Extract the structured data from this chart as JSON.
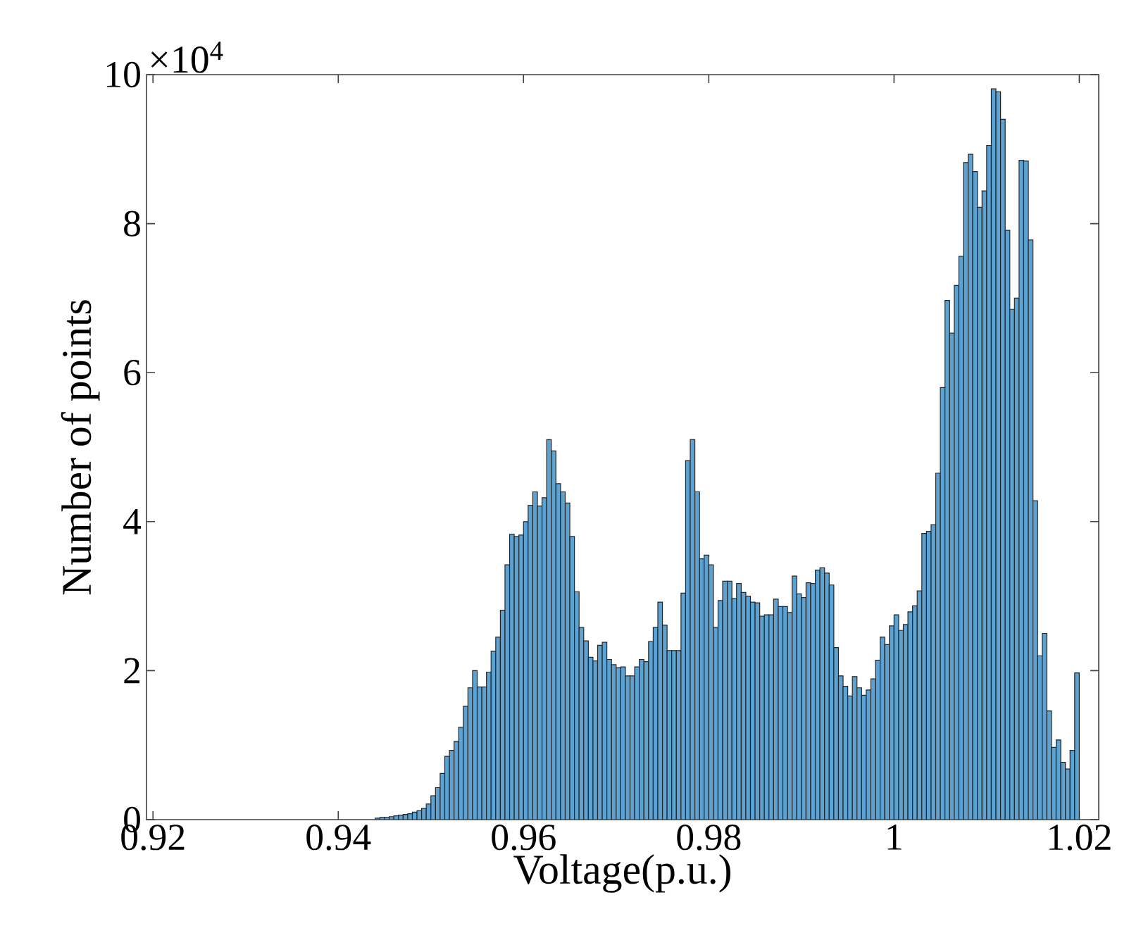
{
  "chart_data": {
    "type": "histogram",
    "xlabel": "Voltage(p.u.)",
    "ylabel": "Number of points",
    "annotations": [
      "×10$^{4}$"
    ],
    "color": "#5ca3d3",
    "bins": [
      0.944,
      0.9445,
      0.945,
      0.9455,
      0.946,
      0.9465,
      0.947,
      0.9475,
      0.948,
      0.9485,
      0.949,
      0.9495,
      0.95,
      0.9505,
      0.951,
      0.9515,
      0.952,
      0.9525,
      0.953,
      0.9535,
      0.954,
      0.9545,
      0.955,
      0.9555,
      0.956,
      0.9565,
      0.957,
      0.9575,
      0.958,
      0.9585,
      0.959,
      0.9595,
      0.96,
      0.9605,
      0.961,
      0.9615,
      0.962,
      0.9625,
      0.963,
      0.9635,
      0.964,
      0.9645,
      0.965,
      0.9655,
      0.966,
      0.9665,
      0.967,
      0.9675,
      0.968,
      0.9685,
      0.969,
      0.9695,
      0.97,
      0.9705,
      0.971,
      0.9715,
      0.972,
      0.9725,
      0.973,
      0.9735,
      0.974,
      0.9745,
      0.975,
      0.9755,
      0.976,
      0.9765,
      0.977,
      0.9775,
      0.978,
      0.9785,
      0.979,
      0.9795,
      0.98,
      0.9805,
      0.981,
      0.9815,
      0.982,
      0.9825,
      0.983,
      0.9835,
      0.984,
      0.9845,
      0.985,
      0.9855,
      0.986,
      0.9865,
      0.987,
      0.9875,
      0.988,
      0.9885,
      0.989,
      0.9895,
      0.99,
      0.9905,
      0.991,
      0.9915,
      0.992,
      0.9925,
      0.993,
      0.9935,
      0.994,
      0.9945,
      0.995,
      0.9955,
      0.996,
      0.9965,
      0.997,
      0.9975,
      0.998,
      0.9985,
      0.999,
      0.9995,
      1.0,
      1.0005,
      1.001,
      1.0015,
      1.002,
      1.0025,
      1.003,
      1.0035,
      1.004,
      1.0045,
      1.005,
      1.0055,
      1.006,
      1.0065,
      1.007,
      1.0075,
      1.008,
      1.0085,
      1.009,
      1.0095,
      1.01,
      1.0105,
      1.011,
      1.0115,
      1.012,
      1.0125,
      1.013,
      1.0135,
      1.014,
      1.0145,
      1.015,
      1.0155,
      1.016,
      1.0165,
      1.017,
      1.0175,
      1.018,
      1.0185,
      1.019,
      1.0195,
      1.02
    ],
    "values": [
      0.02,
      0.03,
      0.03,
      0.04,
      0.05,
      0.06,
      0.07,
      0.08,
      0.1,
      0.12,
      0.15,
      0.21,
      0.32,
      0.43,
      0.62,
      0.85,
      0.93,
      1.05,
      1.24,
      1.52,
      1.77,
      2.0,
      1.78,
      1.78,
      1.98,
      2.26,
      2.45,
      2.81,
      3.42,
      3.83,
      3.8,
      3.82,
      4.0,
      4.22,
      4.4,
      4.21,
      4.32,
      5.1,
      4.95,
      4.51,
      4.4,
      4.25,
      3.8,
      3.06,
      2.58,
      2.4,
      2.18,
      2.13,
      2.34,
      2.38,
      2.15,
      2.08,
      2.04,
      2.05,
      1.93,
      1.93,
      2.05,
      2.15,
      2.12,
      2.39,
      2.58,
      2.92,
      2.61,
      2.27,
      2.27,
      2.27,
      3.04,
      4.82,
      5.1,
      4.4,
      3.5,
      3.55,
      3.42,
      2.58,
      2.94,
      3.2,
      3.2,
      2.97,
      3.17,
      3.05,
      3.0,
      2.92,
      2.91,
      2.73,
      2.75,
      2.75,
      2.96,
      2.86,
      2.86,
      2.78,
      3.27,
      3.03,
      2.98,
      3.18,
      3.17,
      3.35,
      3.38,
      3.31,
      3.15,
      2.31,
      1.93,
      1.79,
      1.66,
      1.92,
      1.77,
      1.67,
      1.74,
      1.89,
      2.14,
      2.45,
      2.35,
      2.6,
      2.75,
      2.54,
      2.62,
      2.79,
      2.87,
      3.07,
      3.84,
      3.87,
      3.96,
      4.65,
      5.8,
      6.97,
      6.53,
      7.17,
      7.56,
      8.82,
      8.93,
      8.7,
      8.22,
      8.44,
      9.05,
      9.81,
      9.77,
      9.4,
      7.91,
      6.85,
      7.0,
      8.85,
      8.84,
      7.78,
      4.28,
      2.2,
      2.5,
      1.46,
      0.97,
      1.07,
      0.77,
      0.68,
      0.93,
      1.97
    ],
    "xlim": [
      0.9193,
      1.0221
    ],
    "ylim": [
      0,
      10
    ],
    "xticks": [
      0.92,
      0.94,
      0.96,
      0.98,
      1,
      1.02
    ],
    "yticks": [
      0,
      2,
      4,
      6,
      8,
      10
    ]
  }
}
